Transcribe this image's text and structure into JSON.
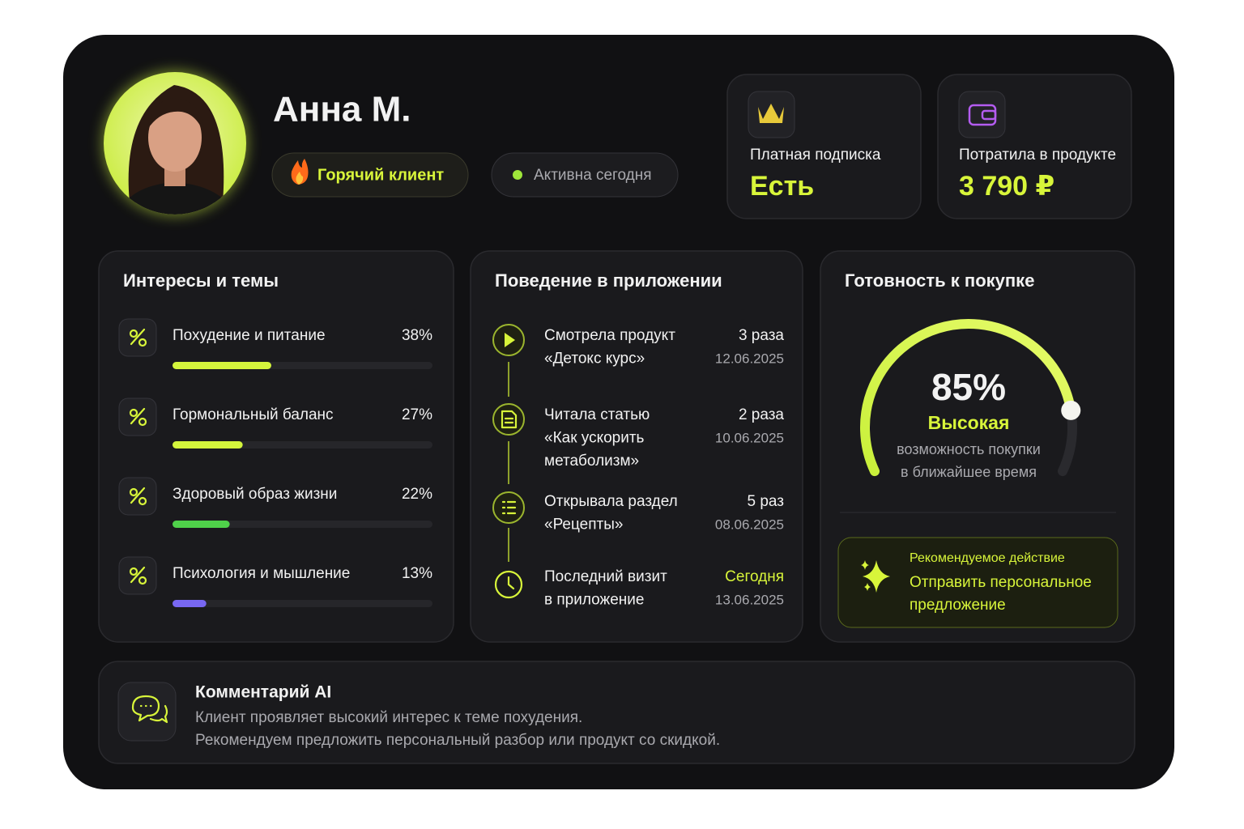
{
  "profile": {
    "name": "Анна М.",
    "badges": [
      "Горячий клиент",
      "Активна сегодня"
    ]
  },
  "stats": [
    {
      "label": "Платная подписка",
      "value": "Есть"
    },
    {
      "label": "Потратила в продукте",
      "value": "3 790 ₽"
    }
  ],
  "interests": {
    "title": "Интересы и темы",
    "items": [
      {
        "name": "Похудение и питание",
        "value": 38,
        "label": "38%",
        "color": "#d4f53c"
      },
      {
        "name": "Гормональный баланс",
        "value": 27,
        "label": "27%",
        "color": "#d4f53c"
      },
      {
        "name": "Здоровый образ жизни",
        "value": 22,
        "label": "22%",
        "color": "#4fd14a"
      },
      {
        "name": "Психология и мышление",
        "value": 13,
        "label": "13%",
        "color": "#7867f2"
      }
    ]
  },
  "behavior": {
    "title": "Поведение в приложении",
    "items": [
      {
        "lines": [
          "Смотрела продукт",
          "«Детокс курс»"
        ],
        "count": "3 раза",
        "date": "12.06.2025"
      },
      {
        "lines": [
          "Читала статью",
          "«Как ускорить",
          "метаболизм»"
        ],
        "count": "2 раза",
        "date": "10.06.2025"
      },
      {
        "lines": [
          "Открывала раздел",
          "«Рецепты»"
        ],
        "count": "5 раз",
        "date": "08.06.2025"
      },
      {
        "lines": [
          "Последний визит",
          "в приложение"
        ],
        "count": "Сегодня",
        "date": "13.06.2025"
      }
    ]
  },
  "readiness": {
    "title": "Готовность к покупке",
    "value": 85,
    "label": "85%",
    "level": "Высокая",
    "caption": [
      "возможность покупки",
      "в ближайшее время"
    ],
    "recommendation": {
      "title": "Рекомендуемое действие",
      "text": [
        "Отправить персональное",
        "предложение"
      ]
    }
  },
  "comment": {
    "title": "Комментарий AI",
    "lines": [
      "Клиент проявляет высокий интерес к теме похудения.",
      "Рекомендуем предложить персональный разбор или продукт со скидкой."
    ]
  }
}
